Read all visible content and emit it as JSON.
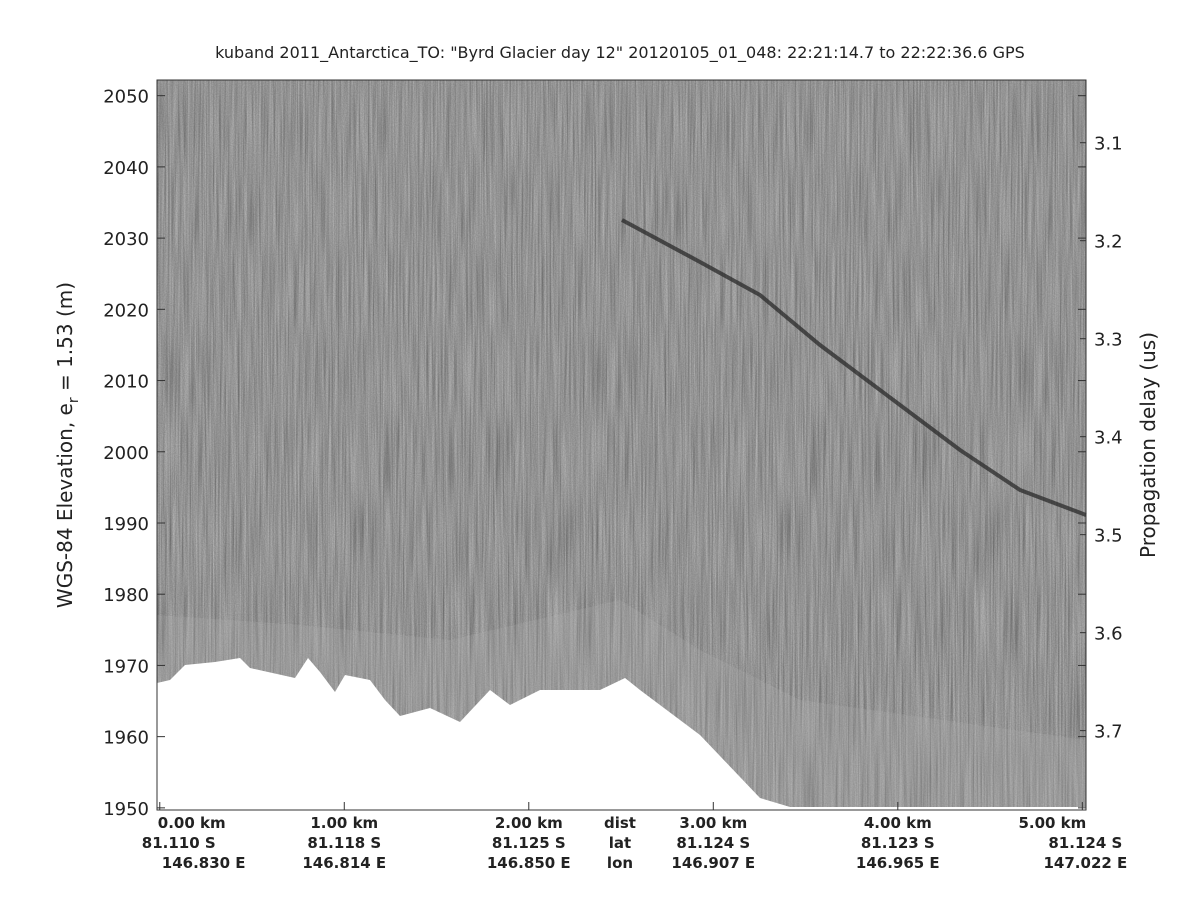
{
  "chart_data": {
    "type": "radargram",
    "title": "kuband 2011_Antarctica_TO: \"Byrd Glacier day 12\"  20120105_01_048: 22:21:14.7 to 22:22:36.6 GPS",
    "ylabel_parts": [
      "WGS-84 Elevation, e",
      "r",
      " = 1.53 (m)"
    ],
    "y2label": "Propagation delay (us)",
    "ylim": [
      1949.7,
      2052.2
    ],
    "yticks": [
      1950,
      1960,
      1970,
      1980,
      1990,
      2000,
      2010,
      2020,
      2030,
      2040,
      2050
    ],
    "y2lim": [
      3.781,
      3.036
    ],
    "y2ticks": [
      3.1,
      3.2,
      3.3,
      3.4,
      3.5,
      3.6,
      3.7
    ],
    "xlim": [
      -0.015,
      5.02
    ],
    "xticks": [
      {
        "value": 0,
        "label": "0.00 km"
      },
      {
        "value": 1,
        "label": "1.00 km"
      },
      {
        "value": 2,
        "label": "2.00 km"
      },
      {
        "value": 3,
        "label": "3.00 km"
      },
      {
        "value": 4,
        "label": "4.00 km"
      },
      {
        "value": 5,
        "label": "5.00 km"
      }
    ],
    "xtick_lat": [
      "81.110 S",
      "81.118 S",
      "81.125 S",
      "81.124 S",
      "81.123 S",
      "81.124 S"
    ],
    "xtick_lon": [
      "146.830 E",
      "146.814 E",
      "146.850 E",
      "146.907 E",
      "146.965 E",
      "147.022 E"
    ],
    "row_names": [
      "dist",
      "lat",
      "lon"
    ]
  }
}
